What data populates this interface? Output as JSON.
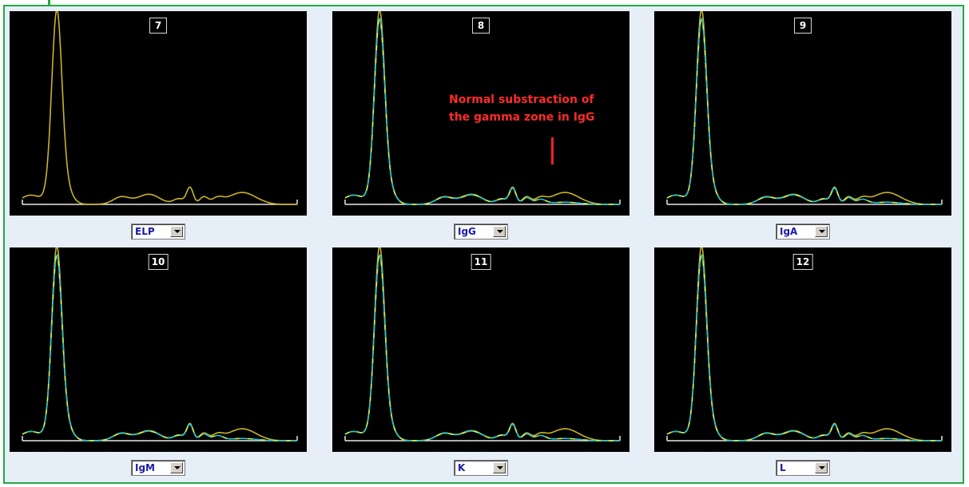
{
  "panels": [
    {
      "number": "7",
      "selector_value": "ELP",
      "curves": [
        "ref"
      ]
    },
    {
      "number": "8",
      "selector_value": "IgG",
      "curves": [
        "ref",
        "test"
      ]
    },
    {
      "number": "9",
      "selector_value": "IgA",
      "curves": [
        "ref",
        "test"
      ]
    },
    {
      "number": "10",
      "selector_value": "IgM",
      "curves": [
        "ref",
        "test"
      ]
    },
    {
      "number": "11",
      "selector_value": "K",
      "curves": [
        "ref",
        "test"
      ]
    },
    {
      "number": "12",
      "selector_value": "L",
      "curves": [
        "ref",
        "test"
      ]
    }
  ],
  "annotation": {
    "line1": "Normal substraction of",
    "line2": "the gamma zone in IgG"
  },
  "colors": {
    "frame_border": "#22aa44",
    "plot_bg": "#000000",
    "reference_curve": "#c8b428",
    "test_curve": "#22c4cc",
    "dash_highlight": "#dcf03c",
    "baseline": "#e8e8e8",
    "annotation_text": "#ff2a2a",
    "selector_text": "#1a1aa8"
  },
  "icons": {
    "selector_dropdown": "chevron-down-icon"
  }
}
